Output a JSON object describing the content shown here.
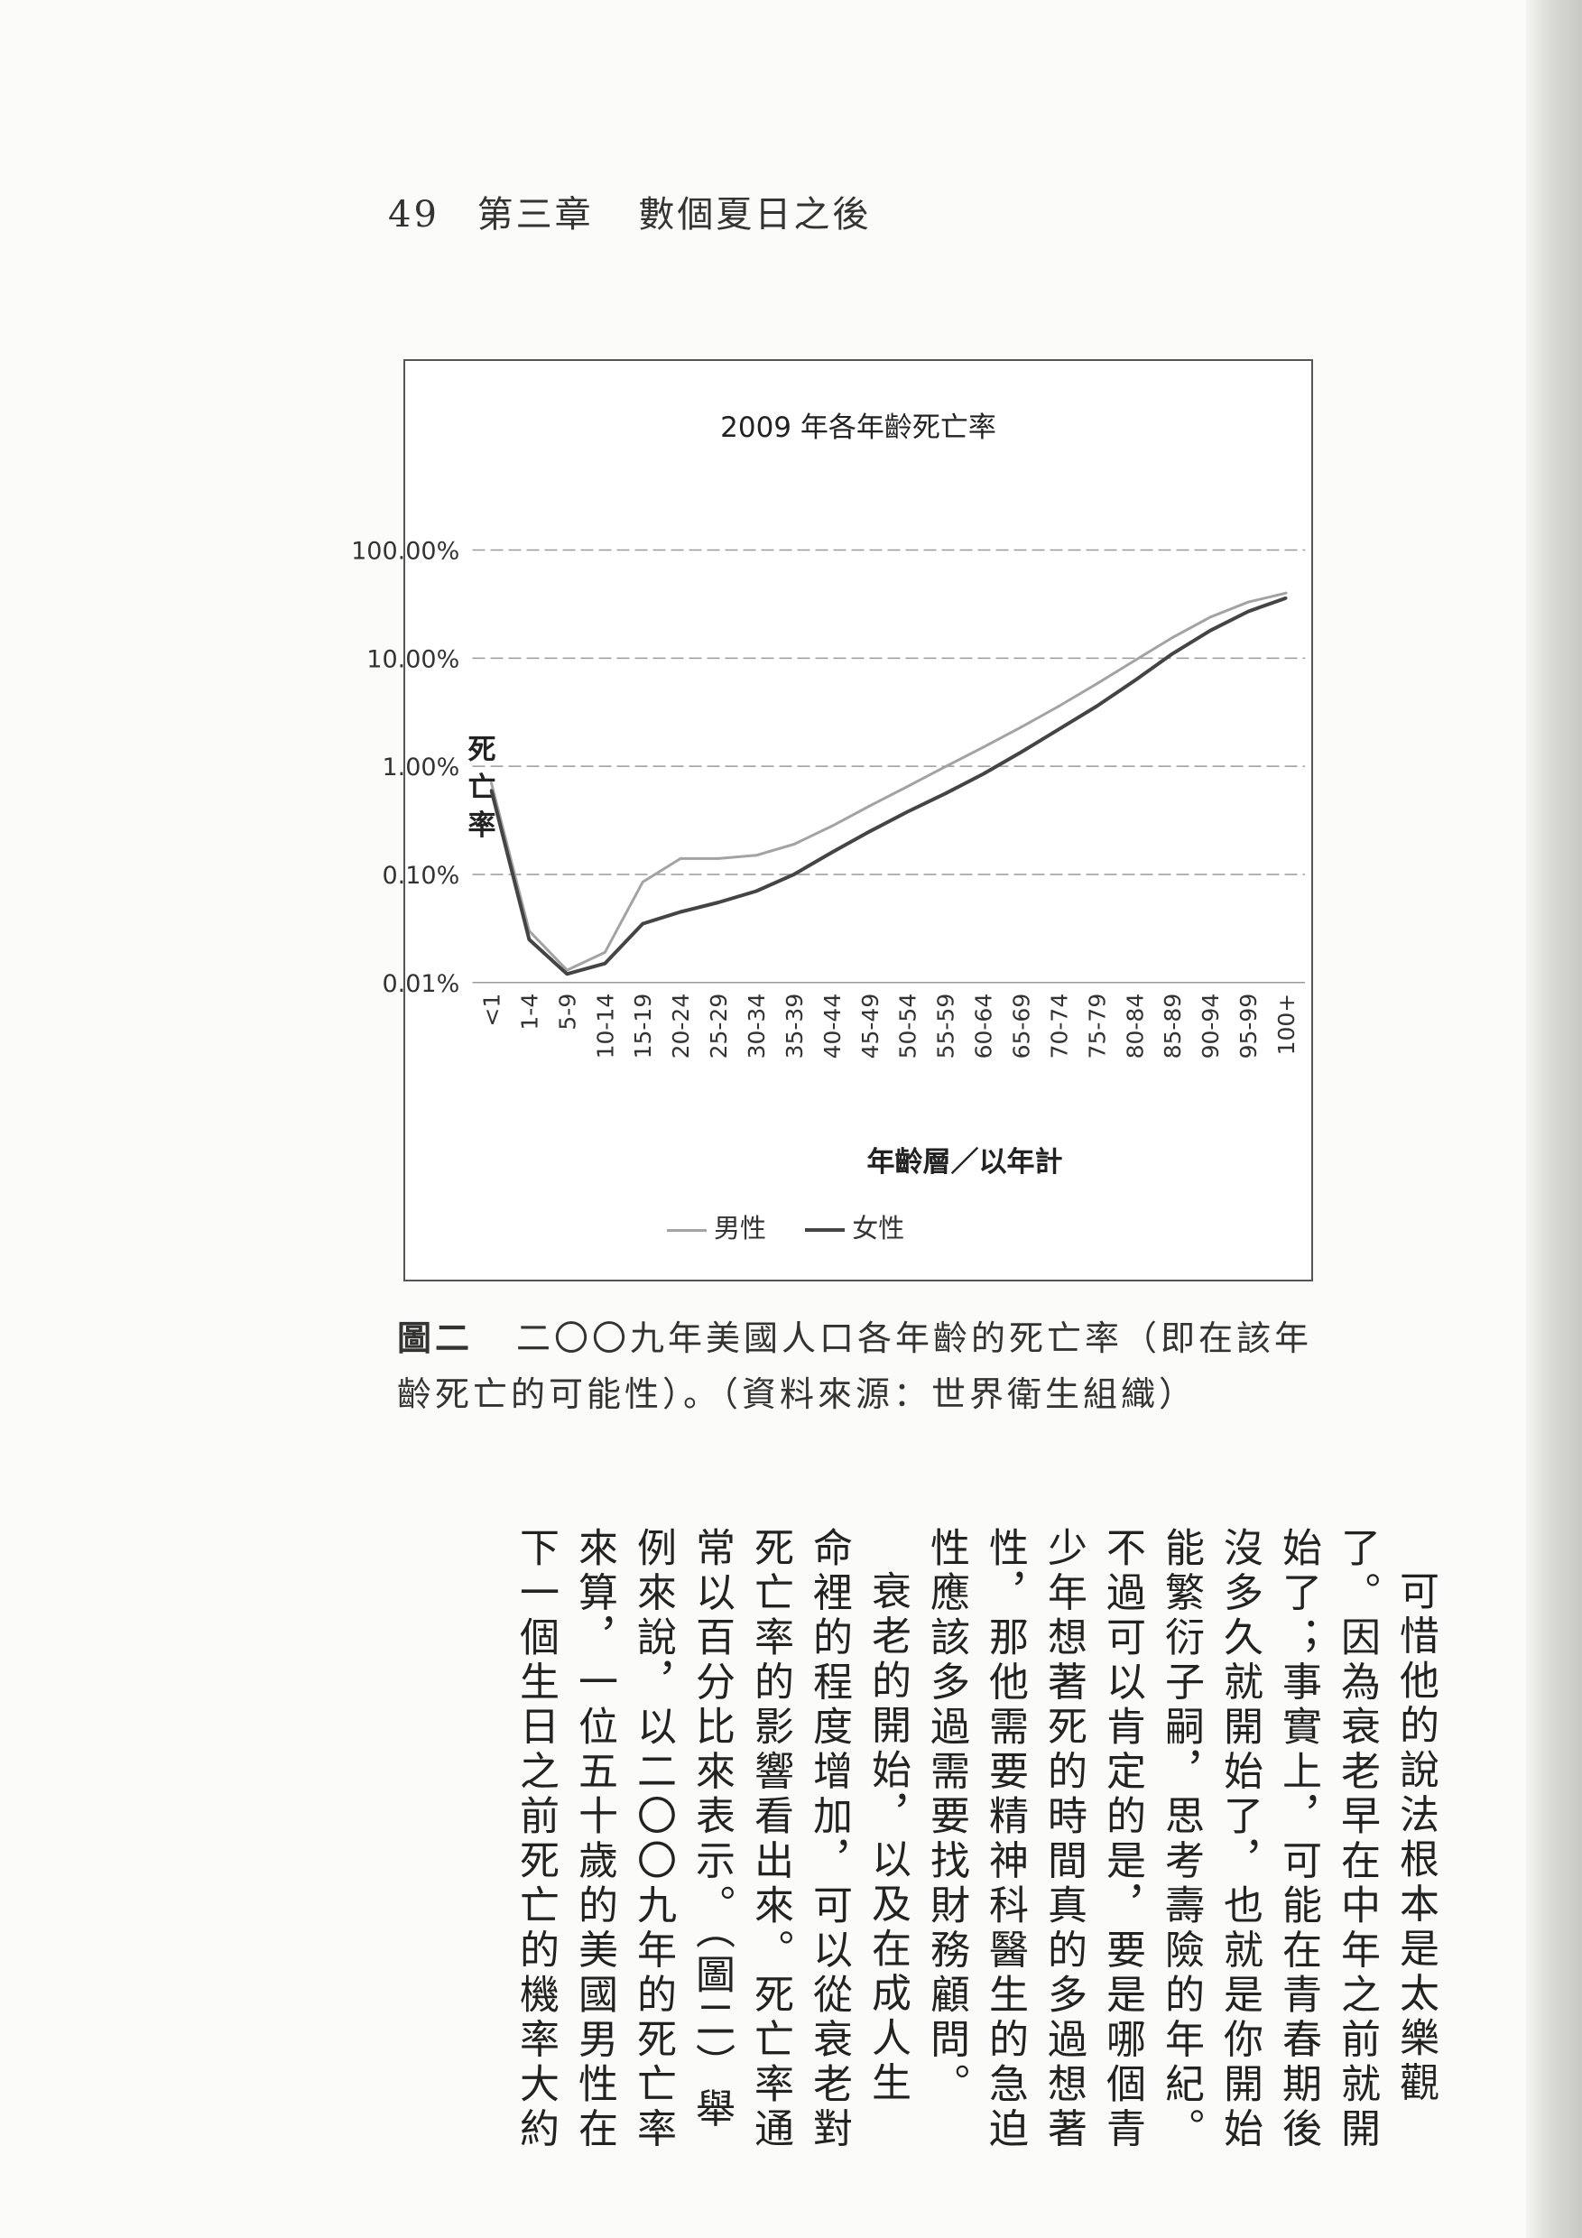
{
  "running_head": {
    "page_number": "49",
    "chapter": "第三章",
    "title": "數個夏日之後"
  },
  "chart_data": {
    "type": "line",
    "title": "2009 年各年齡死亡率",
    "xlabel": "年齡層／以年計",
    "ylabel": "死亡率",
    "y_scale": "log",
    "y_ticks": [
      "100.00%",
      "10.00%",
      "1.00%",
      "0.10%",
      "0.01%"
    ],
    "ylim": [
      0.01,
      100
    ],
    "grid": true,
    "legend_position": "bottom",
    "categories": [
      "<1",
      "1-4",
      "5-9",
      "10-14",
      "15-19",
      "20-24",
      "25-29",
      "30-34",
      "35-39",
      "40-44",
      "45-49",
      "50-54",
      "55-59",
      "60-64",
      "65-69",
      "70-74",
      "75-79",
      "80-84",
      "85-89",
      "90-94",
      "95-99",
      "100+"
    ],
    "series": [
      {
        "name": "男性",
        "color": "#a3a3a3",
        "values": [
          0.7,
          0.03,
          0.013,
          0.019,
          0.085,
          0.14,
          0.14,
          0.15,
          0.19,
          0.28,
          0.43,
          0.65,
          0.99,
          1.5,
          2.3,
          3.6,
          5.8,
          9.5,
          15.5,
          24,
          33,
          40
        ]
      },
      {
        "name": "女性",
        "color": "#444444",
        "values": [
          0.6,
          0.025,
          0.012,
          0.015,
          0.035,
          0.045,
          0.055,
          0.07,
          0.1,
          0.16,
          0.25,
          0.38,
          0.56,
          0.85,
          1.35,
          2.2,
          3.6,
          6.2,
          11,
          18,
          27,
          36
        ]
      }
    ]
  },
  "caption": {
    "label": "圖二",
    "line1": "二〇〇九年美國人口各年齡的死亡率（即在該年",
    "line2": "齡死亡的可能性）。（資料來源：世界衛生組織）"
  },
  "body_text": {
    "columns": [
      "可惜他的說法根本是太樂觀",
      "了。因為衰老早在中年之前就開",
      "始了；事實上，可能在青春期後",
      "沒多久就開始了，也就是你開始",
      "能繁衍子嗣，思考壽險的年紀。",
      "不過可以肯定的是，要是哪個青",
      "少年想著死的時間真的多過想著",
      "性，那他需要精神科醫生的急迫",
      "性應該多過需要找財務顧問。",
      "衰老的開始，以及在成人生",
      "命裡的程度增加，可以從衰老對",
      "死亡率的影響看出來。死亡率通",
      "常以百分比來表示。（圖二）舉",
      "例來說，以二〇〇九年的死亡率",
      "來算，一位五十歲的美國男性在",
      "下一個生日之前死亡的機率大約"
    ]
  }
}
